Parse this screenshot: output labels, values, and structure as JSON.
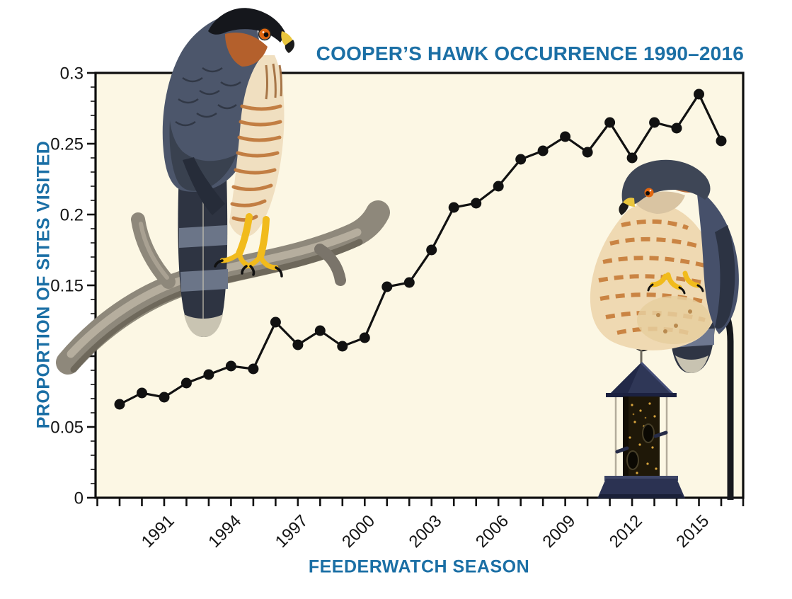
{
  "header": {
    "title": "COOPER’S HAWK OCCURRENCE 1990–2016"
  },
  "colors": {
    "accent_blue": "#1B6FA5",
    "ink": "#111111",
    "plot_background": "#FCF7E4"
  },
  "chart_data": {
    "type": "line",
    "title": "COOPER’S HAWK OCCURRENCE 1990–2016",
    "xlabel": "FEEDERWATCH SEASON",
    "ylabel": "PROPORTION OF SITES VISITED",
    "x": [
      1988,
      1989,
      1990,
      1991,
      1992,
      1993,
      1994,
      1995,
      1996,
      1997,
      1998,
      1999,
      2000,
      2001,
      2002,
      2003,
      2004,
      2005,
      2006,
      2007,
      2008,
      2009,
      2010,
      2011,
      2012,
      2013,
      2014,
      2015
    ],
    "values": [
      0.066,
      0.074,
      0.071,
      0.081,
      0.087,
      0.093,
      0.091,
      0.124,
      0.108,
      0.118,
      0.107,
      0.113,
      0.149,
      0.152,
      0.175,
      0.205,
      0.208,
      0.22,
      0.239,
      0.245,
      0.255,
      0.244,
      0.265,
      0.24,
      0.265,
      0.261,
      0.285,
      0.252
    ],
    "x_tick_labels": [
      "1991",
      "1994",
      "1997",
      "2000",
      "2003",
      "2006",
      "2009",
      "2012",
      "2015"
    ],
    "x_tick_label_years": [
      1991,
      1994,
      1997,
      2000,
      2003,
      2006,
      2009,
      2012,
      2015
    ],
    "y_ticks": [
      0,
      0.05,
      0.1,
      0.15,
      0.2,
      0.25,
      0.3
    ],
    "y_tick_labels": [
      "0",
      "0.05",
      "0.1",
      "0.15",
      "0.2",
      "0.25",
      "0.3"
    ],
    "ylim": [
      0,
      0.3
    ],
    "y_minor_step": 0.01,
    "grid": false,
    "legend": null,
    "marker": "filled-circle",
    "line_color": "#111111",
    "plot_bg": "#FCF7E4"
  },
  "illustrations": [
    {
      "name": "coopers-hawk-on-branch-illustration",
      "position": "top-left"
    },
    {
      "name": "coopers-hawk-on-hook-illustration",
      "position": "right"
    },
    {
      "name": "tube-feeder-on-shepherds-hook-illustration",
      "position": "bottom-right"
    }
  ]
}
